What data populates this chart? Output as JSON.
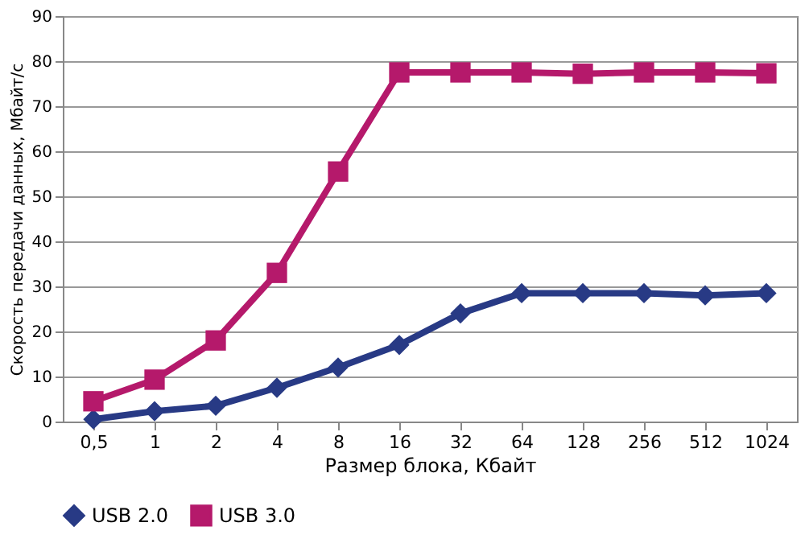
{
  "chart_data": {
    "type": "line",
    "xlabel": "Размер блока, Кбайт",
    "ylabel": "Скорость передачи данных, Мбайт/с",
    "categories": [
      "0,5",
      "1",
      "2",
      "4",
      "8",
      "16",
      "32",
      "64",
      "128",
      "256",
      "512",
      "1024"
    ],
    "series": [
      {
        "name": "USB 2.0",
        "color": "#283a85",
        "marker": "diamond",
        "values": [
          0.5,
          2.3,
          3.5,
          7.5,
          12,
          17,
          24,
          28.5,
          28.5,
          28.5,
          28,
          28.5
        ]
      },
      {
        "name": "USB 3.0",
        "color": "#b5196b",
        "marker": "square",
        "values": [
          4.5,
          9.3,
          18,
          33,
          55.5,
          77.5,
          77.5,
          77.5,
          77.2,
          77.5,
          77.5,
          77.3
        ]
      }
    ],
    "ylim": [
      0,
      90
    ],
    "yticks": [
      0,
      10,
      20,
      30,
      40,
      50,
      60,
      70,
      80,
      90
    ],
    "grid": "y",
    "legend": "bottom",
    "line_style": "solid"
  }
}
